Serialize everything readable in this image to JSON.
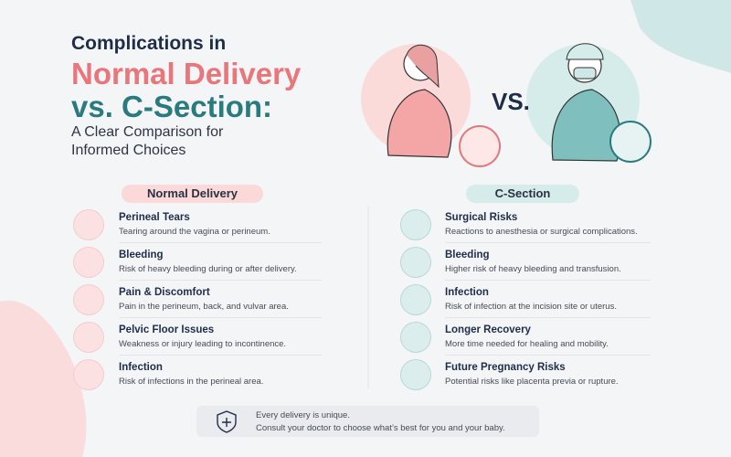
{
  "header": {
    "title_line1": "Complications in",
    "title_line2": "Normal Delivery",
    "title_line3": "vs. C-Section:",
    "subtitle_line1": "A Clear Comparison for",
    "subtitle_line2": "Informed Choices"
  },
  "vs": "VS.",
  "left": {
    "heading": "Normal Delivery",
    "items": [
      {
        "title": "Perineal Tears",
        "text": "Tearing around the vagina or perineum."
      },
      {
        "title": "Bleeding",
        "text": "Risk of heavy bleeding during or after delivery."
      },
      {
        "title": "Pain & Discomfort",
        "text": "Pain in the perineum, back, and vulvar area."
      },
      {
        "title": "Pelvic Floor Issues",
        "text": "Weakness or injury leading to incontinence."
      },
      {
        "title": "Infection",
        "text": "Risk of infections in the perineal area."
      }
    ]
  },
  "right": {
    "heading": "C-Section",
    "items": [
      {
        "title": "Surgical Risks",
        "text": "Reactions to anesthesia or surgical complications."
      },
      {
        "title": "Bleeding",
        "text": "Higher risk of heavy bleeding and transfusion."
      },
      {
        "title": "Infection",
        "text": "Risk of infection at the incision site or uterus."
      },
      {
        "title": "Longer Recovery",
        "text": "More time needed for healing and mobility."
      },
      {
        "title": "Future Pregnancy Risks",
        "text": "Potential risks like placenta previa or rupture."
      }
    ]
  },
  "footer": {
    "line1": "Every delivery is unique.",
    "line2": "Consult your doctor to choose what’s best for you and your baby."
  }
}
